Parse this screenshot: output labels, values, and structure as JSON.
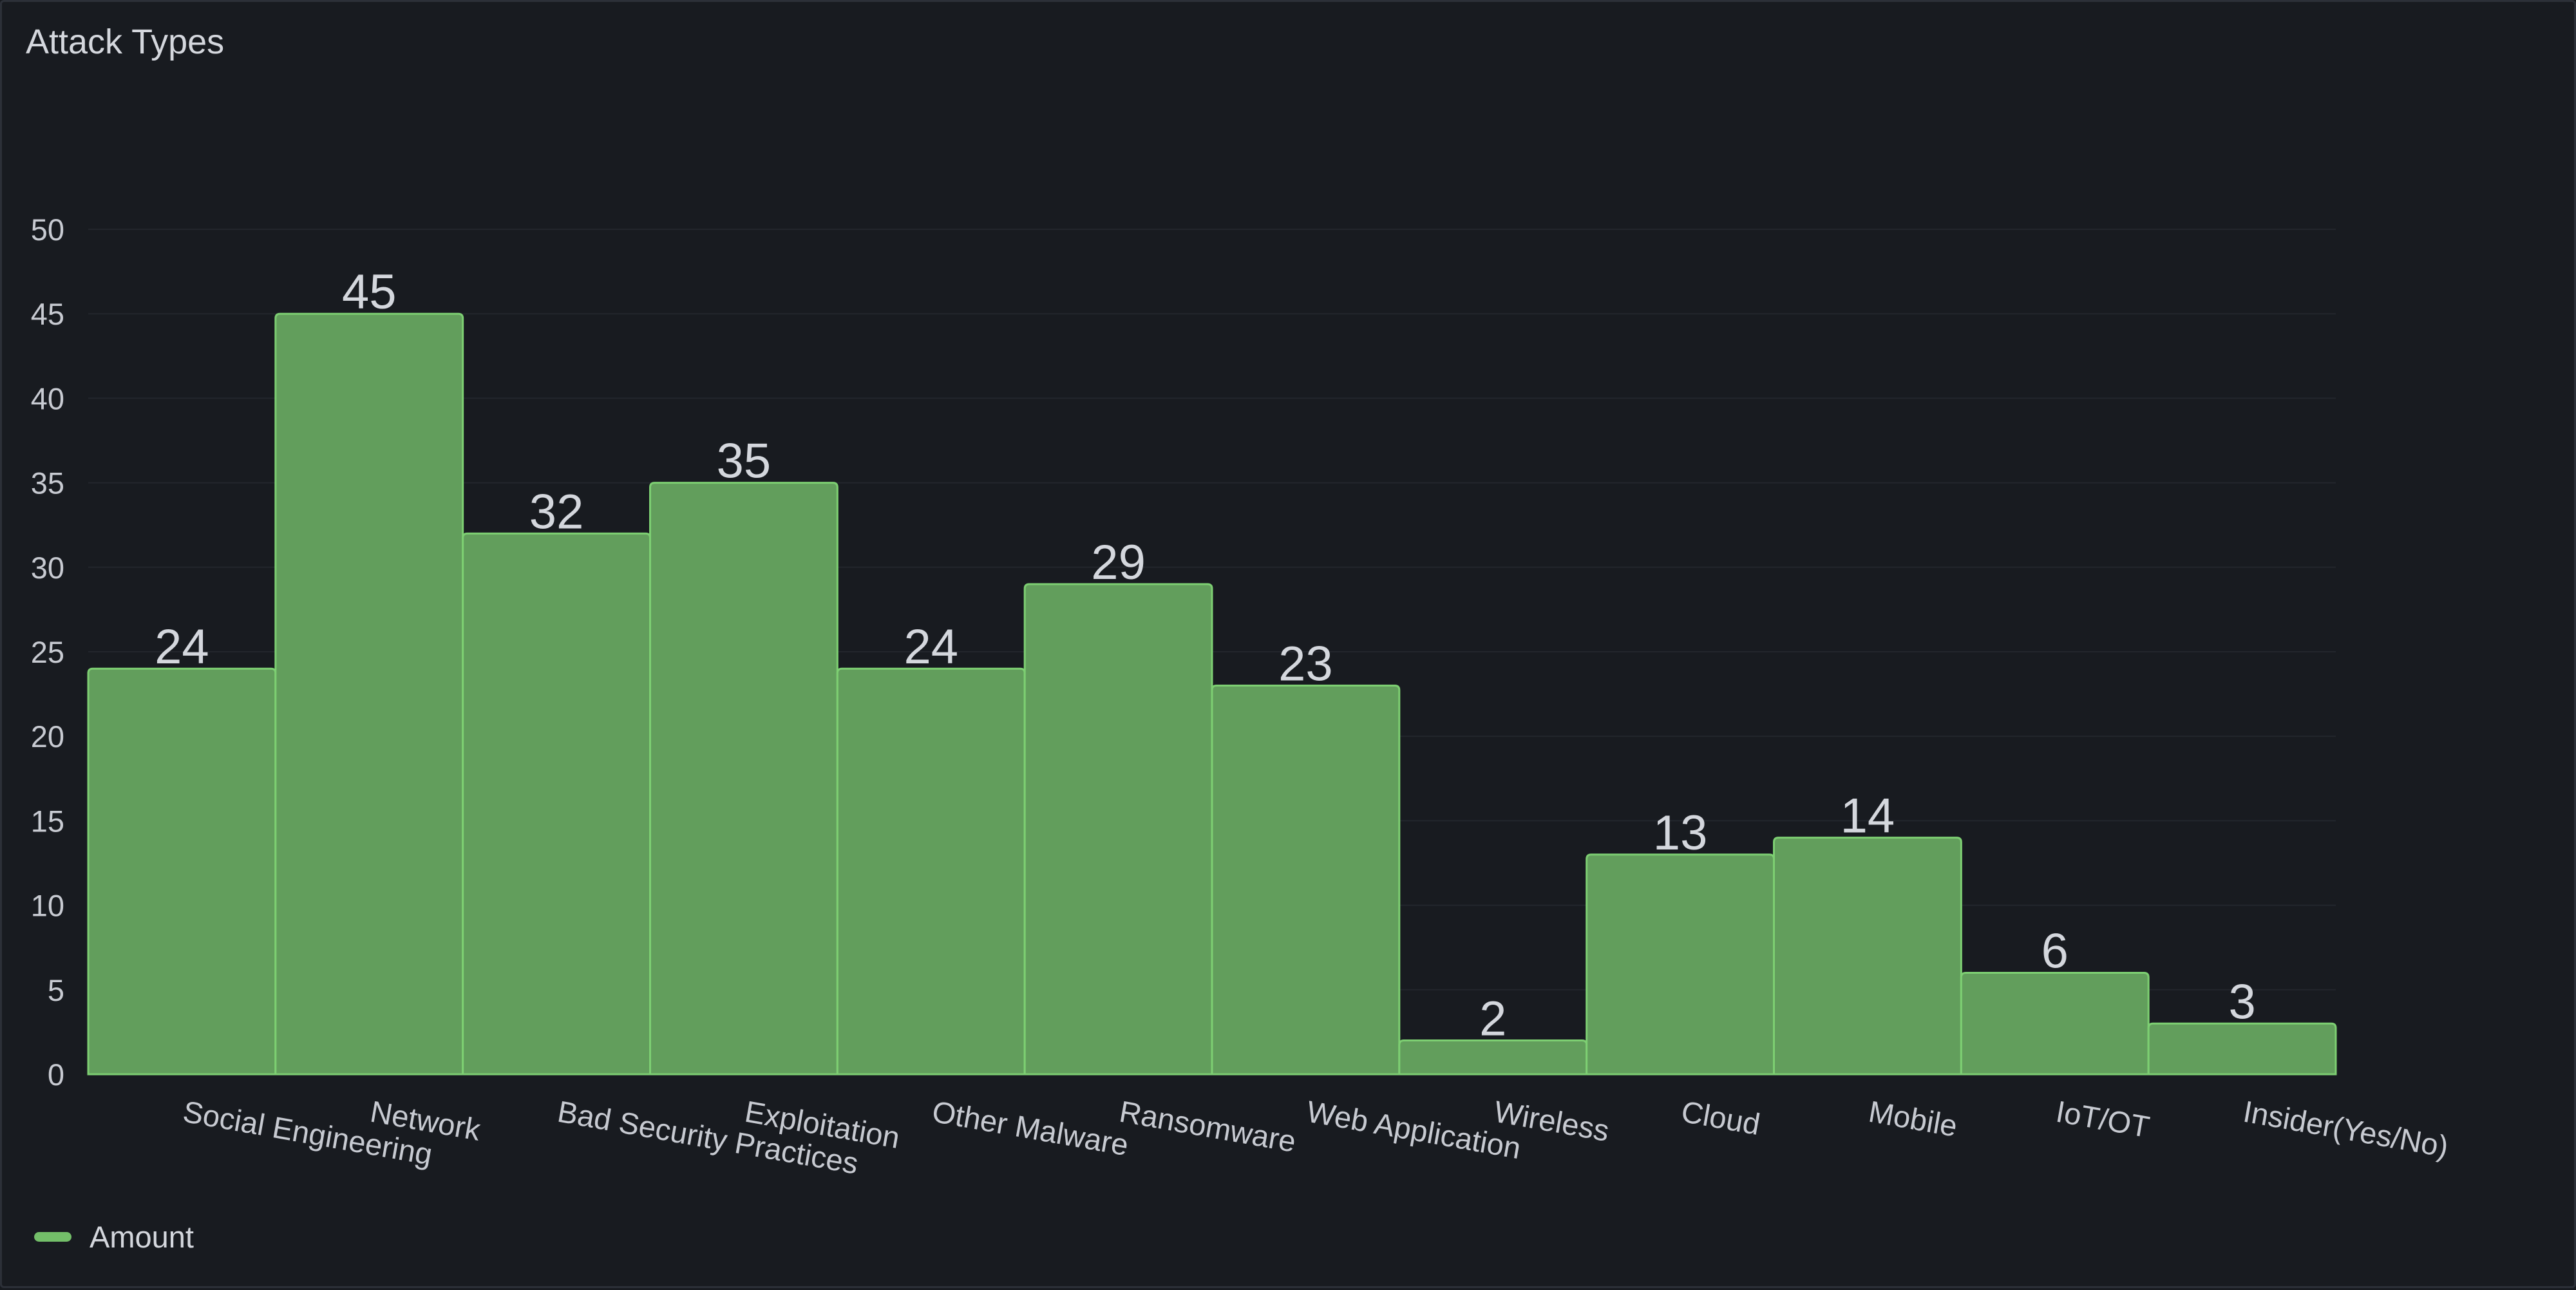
{
  "panel": {
    "title": "Attack Types"
  },
  "colors": {
    "bar_fill": "#629e5c",
    "bar_stroke": "#7dcf72",
    "legend": "#73bf69",
    "grid": "#23262c",
    "axis_text": "#c7cad1",
    "value_text": "#d4d7dd"
  },
  "chart_data": {
    "type": "bar",
    "title": "Attack Types",
    "xlabel": "",
    "ylabel": "",
    "ylim": [
      0,
      50
    ],
    "yticks": [
      0,
      5,
      10,
      15,
      20,
      25,
      30,
      35,
      40,
      45,
      50
    ],
    "grid": true,
    "legend_position": "bottom-left",
    "categories": [
      "Social Engineering",
      "Network",
      "Bad Security Practices",
      "Exploitation",
      "Other Malware",
      "Ransomware",
      "Web Application",
      "Wireless",
      "Cloud",
      "Mobile",
      "IoT/OT",
      "Insider(Yes/No)"
    ],
    "series": [
      {
        "name": "Amount",
        "values": [
          24,
          45,
          32,
          35,
          24,
          29,
          23,
          2,
          13,
          14,
          6,
          3
        ]
      }
    ]
  }
}
